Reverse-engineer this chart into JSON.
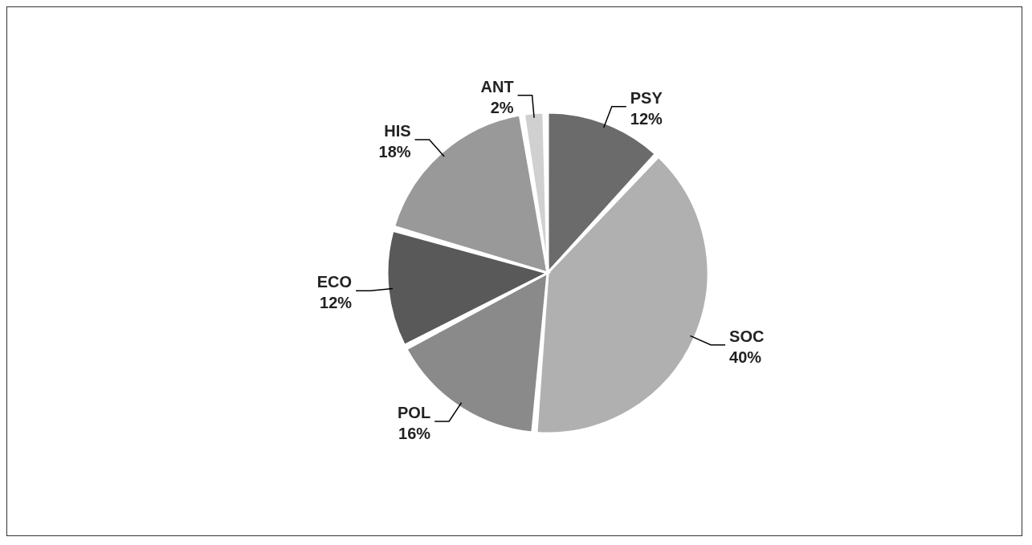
{
  "chart_data": {
    "type": "pie",
    "categories": [
      "PSY",
      "SOC",
      "POL",
      "ECO",
      "HIS",
      "ANT"
    ],
    "values": [
      12,
      40,
      16,
      12,
      18,
      2
    ],
    "value_labels": [
      "12%",
      "40%",
      "16%",
      "12%",
      "18%",
      "2%"
    ],
    "colors": [
      "#6b6b6b",
      "#b0b0b0",
      "#8a8a8a",
      "#595959",
      "#999999",
      "#d0d0d0"
    ]
  }
}
